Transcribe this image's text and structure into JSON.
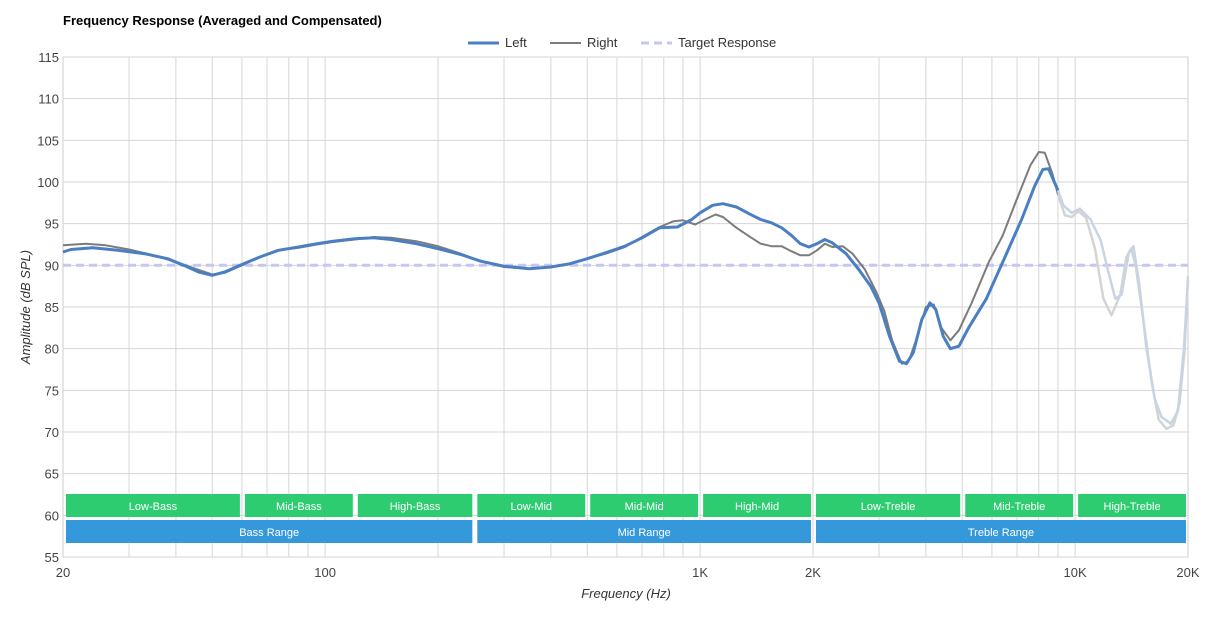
{
  "chart_data": {
    "type": "line",
    "title": "Frequency Response (Averaged and Compensated)",
    "xlabel": "Frequency (Hz)",
    "ylabel": "Amplitude (dB SPL)",
    "x_scale": "log",
    "xlim": [
      20,
      20000
    ],
    "ylim": [
      55,
      115
    ],
    "y_ticks": [
      55,
      60,
      65,
      70,
      75,
      80,
      85,
      90,
      95,
      100,
      105,
      110,
      115
    ],
    "x_ticks": [
      {
        "value": 20,
        "label": "20"
      },
      {
        "value": 100,
        "label": "100"
      },
      {
        "value": 1000,
        "label": "1K"
      },
      {
        "value": 2000,
        "label": "2K"
      },
      {
        "value": 10000,
        "label": "10K"
      },
      {
        "value": 20000,
        "label": "20K"
      }
    ],
    "grid": true,
    "legend_position": "top-center",
    "series": [
      {
        "name": "Left",
        "color": "#4a7fc1",
        "faded_color": "#c9d4e2",
        "faded_from": 9000,
        "points": [
          [
            20,
            91.6
          ],
          [
            21,
            91.9
          ],
          [
            24,
            92.1
          ],
          [
            28,
            91.8
          ],
          [
            33,
            91.4
          ],
          [
            38,
            90.8
          ],
          [
            42,
            90.0
          ],
          [
            46,
            89.2
          ],
          [
            50,
            88.8
          ],
          [
            54,
            89.2
          ],
          [
            60,
            90.1
          ],
          [
            67,
            91.0
          ],
          [
            75,
            91.8
          ],
          [
            85,
            92.2
          ],
          [
            95,
            92.6
          ],
          [
            105,
            92.9
          ],
          [
            120,
            93.2
          ],
          [
            135,
            93.3
          ],
          [
            150,
            93.1
          ],
          [
            175,
            92.6
          ],
          [
            200,
            92.0
          ],
          [
            230,
            91.3
          ],
          [
            260,
            90.5
          ],
          [
            300,
            89.9
          ],
          [
            350,
            89.6
          ],
          [
            400,
            89.8
          ],
          [
            450,
            90.2
          ],
          [
            500,
            90.8
          ],
          [
            560,
            91.5
          ],
          [
            630,
            92.3
          ],
          [
            700,
            93.3
          ],
          [
            780,
            94.5
          ],
          [
            870,
            94.6
          ],
          [
            950,
            95.5
          ],
          [
            1000,
            96.3
          ],
          [
            1080,
            97.2
          ],
          [
            1150,
            97.4
          ],
          [
            1250,
            97.0
          ],
          [
            1350,
            96.2
          ],
          [
            1450,
            95.5
          ],
          [
            1550,
            95.1
          ],
          [
            1650,
            94.5
          ],
          [
            1750,
            93.6
          ],
          [
            1850,
            92.6
          ],
          [
            1950,
            92.2
          ],
          [
            2050,
            92.6
          ],
          [
            2150,
            93.1
          ],
          [
            2250,
            92.7
          ],
          [
            2450,
            91.4
          ],
          [
            2650,
            89.5
          ],
          [
            2850,
            87.5
          ],
          [
            3000,
            85.5
          ],
          [
            3200,
            81.5
          ],
          [
            3400,
            78.5
          ],
          [
            3550,
            78.2
          ],
          [
            3700,
            79.5
          ],
          [
            3900,
            83.5
          ],
          [
            4100,
            85.5
          ],
          [
            4250,
            84.7
          ],
          [
            4450,
            81.5
          ],
          [
            4650,
            80.0
          ],
          [
            4900,
            80.3
          ],
          [
            5200,
            82.5
          ],
          [
            5800,
            86.0
          ],
          [
            6500,
            91.0
          ],
          [
            7200,
            95.5
          ],
          [
            7800,
            99.5
          ],
          [
            8200,
            101.5
          ],
          [
            8500,
            101.6
          ],
          [
            8800,
            100.0
          ],
          [
            9000,
            99.0
          ],
          [
            9300,
            97.2
          ],
          [
            9800,
            96.3
          ],
          [
            10300,
            96.8
          ],
          [
            11000,
            95.5
          ],
          [
            11700,
            93.0
          ],
          [
            12300,
            89.0
          ],
          [
            12800,
            86.0
          ],
          [
            13300,
            86.5
          ],
          [
            13900,
            91.5
          ],
          [
            14300,
            92.3
          ],
          [
            14800,
            88.0
          ],
          [
            15500,
            80.0
          ],
          [
            16300,
            74.0
          ],
          [
            17000,
            71.8
          ],
          [
            18000,
            71.0
          ],
          [
            18800,
            72.5
          ],
          [
            19500,
            80.0
          ],
          [
            20000,
            88.3
          ]
        ]
      },
      {
        "name": "Right",
        "color": "#7c7c7c",
        "faded_color": "#d4d4d4",
        "faded_from": 9000,
        "points": [
          [
            20,
            92.4
          ],
          [
            23,
            92.6
          ],
          [
            26,
            92.4
          ],
          [
            30,
            91.9
          ],
          [
            35,
            91.2
          ],
          [
            40,
            90.4
          ],
          [
            45,
            89.6
          ],
          [
            50,
            88.9
          ],
          [
            54,
            89.1
          ],
          [
            60,
            90.0
          ],
          [
            67,
            91.0
          ],
          [
            75,
            91.8
          ],
          [
            85,
            92.1
          ],
          [
            95,
            92.5
          ],
          [
            105,
            92.8
          ],
          [
            120,
            93.1
          ],
          [
            135,
            93.4
          ],
          [
            150,
            93.3
          ],
          [
            175,
            92.9
          ],
          [
            200,
            92.3
          ],
          [
            230,
            91.4
          ],
          [
            260,
            90.5
          ],
          [
            300,
            89.8
          ],
          [
            350,
            89.6
          ],
          [
            400,
            89.8
          ],
          [
            450,
            90.2
          ],
          [
            500,
            90.8
          ],
          [
            560,
            91.4
          ],
          [
            630,
            92.2
          ],
          [
            700,
            93.4
          ],
          [
            780,
            94.6
          ],
          [
            850,
            95.3
          ],
          [
            900,
            95.4
          ],
          [
            970,
            94.9
          ],
          [
            1030,
            95.5
          ],
          [
            1100,
            96.1
          ],
          [
            1150,
            95.8
          ],
          [
            1250,
            94.5
          ],
          [
            1350,
            93.5
          ],
          [
            1450,
            92.6
          ],
          [
            1550,
            92.3
          ],
          [
            1650,
            92.3
          ],
          [
            1750,
            91.7
          ],
          [
            1850,
            91.2
          ],
          [
            1950,
            91.2
          ],
          [
            2050,
            91.8
          ],
          [
            2150,
            92.6
          ],
          [
            2250,
            92.2
          ],
          [
            2400,
            92.3
          ],
          [
            2550,
            91.4
          ],
          [
            2750,
            89.5
          ],
          [
            2950,
            86.8
          ],
          [
            3100,
            84.5
          ],
          [
            3250,
            81.0
          ],
          [
            3450,
            78.2
          ],
          [
            3600,
            78.5
          ],
          [
            3800,
            81.5
          ],
          [
            4000,
            85.0
          ],
          [
            4200,
            85.3
          ],
          [
            4400,
            82.5
          ],
          [
            4650,
            81.0
          ],
          [
            4900,
            82.2
          ],
          [
            5300,
            85.5
          ],
          [
            5900,
            90.5
          ],
          [
            6400,
            93.5
          ],
          [
            7000,
            98.0
          ],
          [
            7600,
            102.0
          ],
          [
            8000,
            103.6
          ],
          [
            8300,
            103.5
          ],
          [
            8700,
            101.0
          ],
          [
            9000,
            98.5
          ],
          [
            9400,
            96.0
          ],
          [
            9800,
            95.8
          ],
          [
            10200,
            96.5
          ],
          [
            10700,
            95.7
          ],
          [
            11300,
            92.0
          ],
          [
            11900,
            86.0
          ],
          [
            12500,
            84.0
          ],
          [
            13200,
            86.5
          ],
          [
            13700,
            91.0
          ],
          [
            14100,
            92.0
          ],
          [
            14500,
            90.0
          ],
          [
            15200,
            83.5
          ],
          [
            16000,
            76.0
          ],
          [
            16700,
            71.5
          ],
          [
            17500,
            70.4
          ],
          [
            18300,
            70.8
          ],
          [
            19000,
            73.5
          ],
          [
            19600,
            80.0
          ],
          [
            20000,
            88.7
          ]
        ]
      },
      {
        "name": "Target Response",
        "color": "#c5c7f2",
        "dashed": true,
        "points": [
          [
            20,
            90
          ],
          [
            20000,
            90
          ]
        ]
      }
    ],
    "bands": [
      {
        "label": "Low-Bass",
        "from": 20,
        "to": 60,
        "row": 1,
        "color": "#2ecc71"
      },
      {
        "label": "Mid-Bass",
        "from": 60,
        "to": 120,
        "row": 1,
        "color": "#2ecc71"
      },
      {
        "label": "High-Bass",
        "from": 120,
        "to": 250,
        "row": 1,
        "color": "#2ecc71"
      },
      {
        "label": "Low-Mid",
        "from": 250,
        "to": 500,
        "row": 1,
        "color": "#2ecc71"
      },
      {
        "label": "Mid-Mid",
        "from": 500,
        "to": 1000,
        "row": 1,
        "color": "#2ecc71"
      },
      {
        "label": "High-Mid",
        "from": 1000,
        "to": 2000,
        "row": 1,
        "color": "#2ecc71"
      },
      {
        "label": "Low-Treble",
        "from": 2000,
        "to": 5000,
        "row": 1,
        "color": "#2ecc71"
      },
      {
        "label": "Mid-Treble",
        "from": 5000,
        "to": 10000,
        "row": 1,
        "color": "#2ecc71"
      },
      {
        "label": "High-Treble",
        "from": 10000,
        "to": 20000,
        "row": 1,
        "color": "#2ecc71"
      },
      {
        "label": "Bass Range",
        "from": 20,
        "to": 250,
        "row": 2,
        "color": "#3498db"
      },
      {
        "label": "Mid Range",
        "from": 250,
        "to": 2000,
        "row": 2,
        "color": "#3498db"
      },
      {
        "label": "Treble Range",
        "from": 2000,
        "to": 20000,
        "row": 2,
        "color": "#3498db"
      }
    ]
  }
}
